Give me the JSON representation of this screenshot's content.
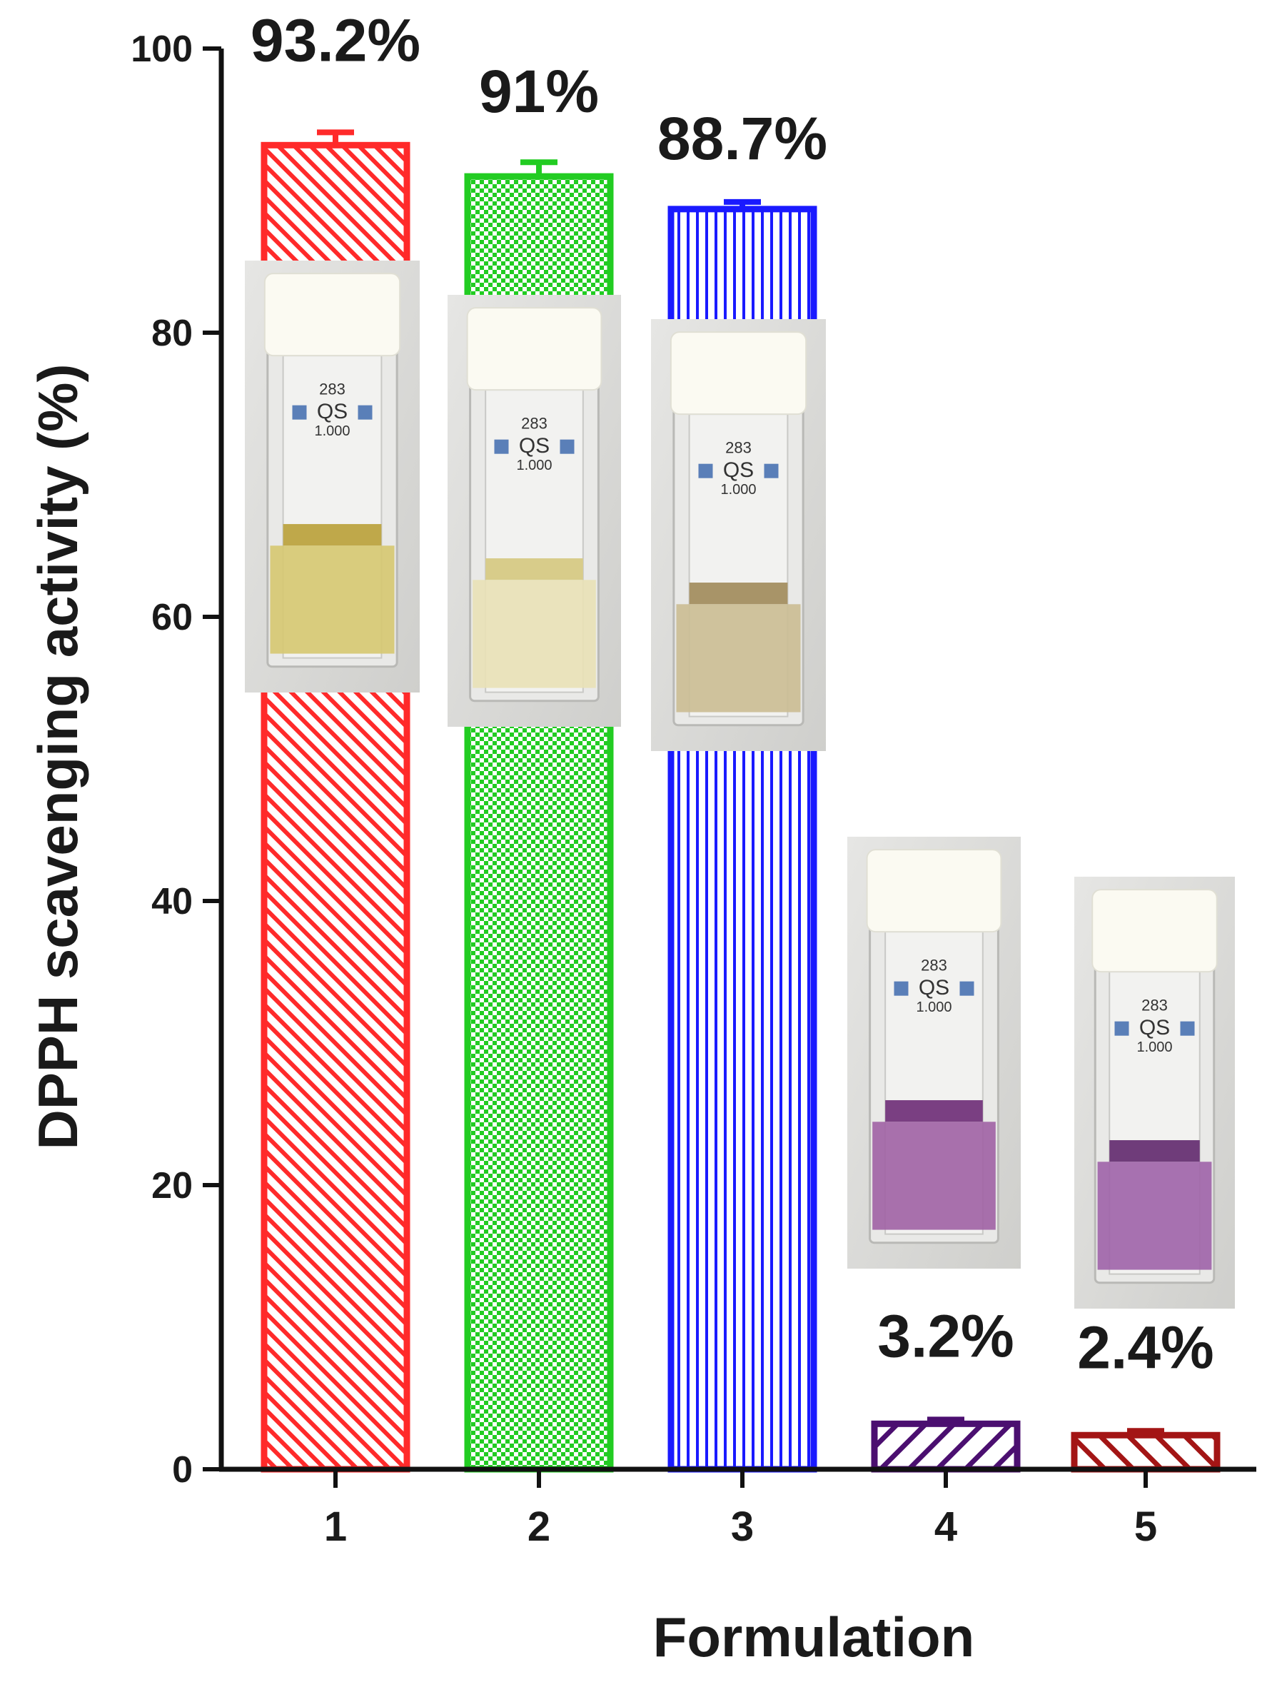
{
  "chart_data": {
    "type": "bar",
    "categories": [
      "1",
      "2",
      "3",
      "4",
      "5"
    ],
    "values": [
      93.2,
      91,
      88.7,
      3.2,
      2.4
    ],
    "error_plus": [
      0.9,
      1.0,
      0.5,
      0.3,
      0.3
    ],
    "data_labels": [
      "93.2%",
      "91%",
      "88.7%",
      "3.2%",
      "2.4%"
    ],
    "bar_colors": [
      "#ff2a2a",
      "#22cc22",
      "#1a1aff",
      "#4b0f70",
      "#a31515"
    ],
    "bar_patterns": [
      "diagonal",
      "checker",
      "vertical",
      "diagonal-wide",
      "diagonal-wide"
    ],
    "xlabel": "Formulation",
    "ylabel": "DPPH scavenging activity (%)",
    "ylim": [
      0,
      100
    ],
    "yticks": [
      0,
      20,
      40,
      60,
      80,
      100
    ],
    "grid": false
  },
  "cuvette_photos": [
    {
      "liquid_color": "#d6c870",
      "meniscus_color": "#bfa84a",
      "lid_text": "283",
      "brand": "QS",
      "size_text": "1.000"
    },
    {
      "liquid_color": "#e9e1b6",
      "meniscus_color": "#d8cc8a",
      "lid_text": "283",
      "brand": "QS",
      "size_text": "1.000"
    },
    {
      "liquid_color": "#cbbd92",
      "meniscus_color": "#a89468",
      "lid_text": "283",
      "brand": "QS",
      "size_text": "1.000"
    },
    {
      "liquid_color": "#a062a4",
      "meniscus_color": "#7a3f82",
      "lid_text": "283",
      "brand": "QS",
      "size_text": "1.000"
    },
    {
      "liquid_color": "#9e63a8",
      "meniscus_color": "#6f3c7a",
      "lid_text": "283",
      "brand": "QS",
      "size_text": "1.000"
    }
  ]
}
